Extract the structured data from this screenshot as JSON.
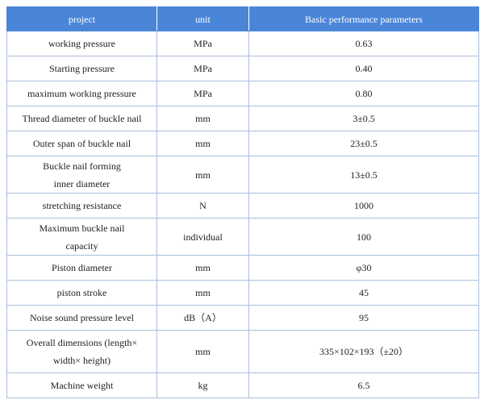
{
  "table": {
    "header": [
      "project",
      "unit",
      "Basic performance parameters"
    ],
    "rows": [
      [
        "working pressure",
        "MPa",
        "0.63"
      ],
      [
        "Starting pressure",
        "MPa",
        "0.40"
      ],
      [
        "maximum working pressure",
        "MPa",
        "0.80"
      ],
      [
        "Thread diameter of buckle nail",
        "mm",
        "3±0.5"
      ],
      [
        "Outer span of buckle nail",
        "mm",
        "23±0.5"
      ],
      [
        "Buckle nail forming inner diameter",
        "mm",
        "13±0.5"
      ],
      [
        "stretching resistance",
        "N",
        "1000"
      ],
      [
        "Maximum buckle nail capacity",
        "individual",
        "100"
      ],
      [
        "Piston diameter",
        "mm",
        "φ30"
      ],
      [
        "piston stroke",
        "mm",
        "45"
      ],
      [
        "Noise sound pressure level",
        "dB（A）",
        "95"
      ],
      [
        "Overall dimensions (length× width× height)",
        "mm",
        "335×102×193（±20）"
      ],
      [
        "Machine weight",
        "kg",
        "6.5"
      ]
    ]
  }
}
